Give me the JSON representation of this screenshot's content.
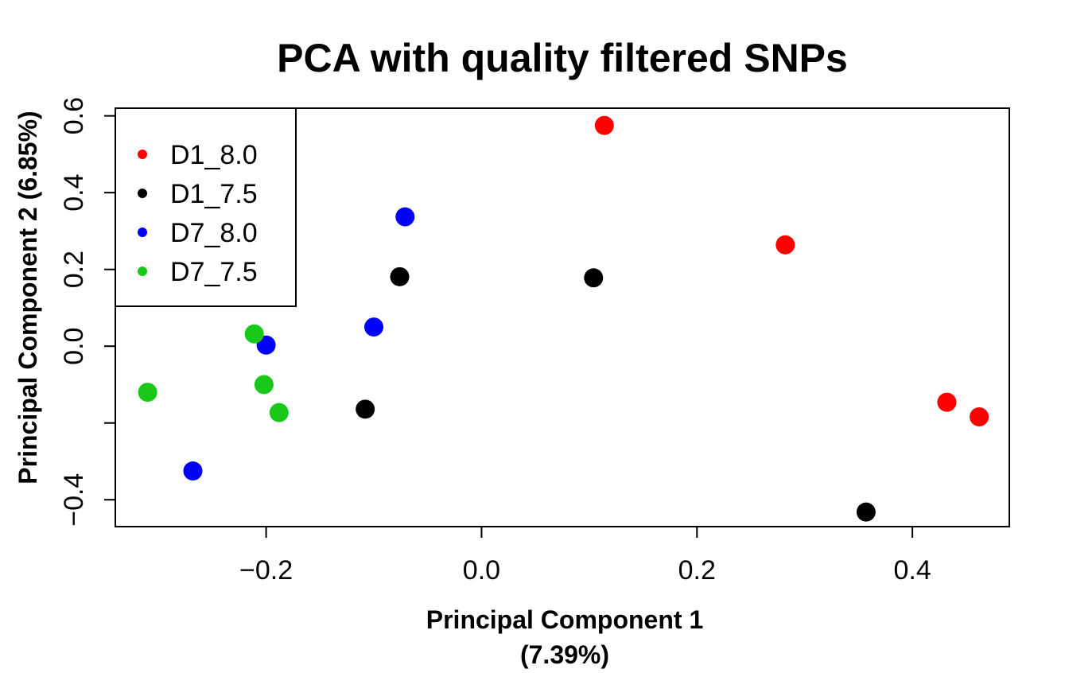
{
  "chart_data": {
    "type": "scatter",
    "title": "PCA with quality filtered SNPs",
    "xlabel": "Principal Component 1",
    "xlabel_line2": "(7.39%)",
    "ylabel": "Principal Component 2 (6.85%)",
    "xlim": [
      -0.34,
      0.49
    ],
    "ylim": [
      -0.47,
      0.62
    ],
    "xticks": [
      -0.2,
      0.0,
      0.2,
      0.4
    ],
    "xtick_labels": [
      "−0.2",
      "0.0",
      "0.2",
      "0.4"
    ],
    "yticks": [
      -0.4,
      -0.2,
      0.0,
      0.2,
      0.4,
      0.6
    ],
    "ytick_labels": [
      "−0.4",
      "",
      "0.0",
      "0.2",
      "0.4",
      "0.6"
    ],
    "grid": false,
    "legend_position": "top-left",
    "series": [
      {
        "name": "D1_8.0",
        "color": "#ff0000",
        "points": [
          [
            0.114,
            0.575
          ],
          [
            0.282,
            0.264
          ],
          [
            0.432,
            -0.146
          ],
          [
            0.462,
            -0.184
          ]
        ]
      },
      {
        "name": "D1_7.5",
        "color": "#000000",
        "points": [
          [
            -0.076,
            0.181
          ],
          [
            0.104,
            0.178
          ],
          [
            -0.108,
            -0.164
          ],
          [
            0.357,
            -0.432
          ]
        ]
      },
      {
        "name": "D7_8.0",
        "color": "#0000ff",
        "points": [
          [
            -0.071,
            0.337
          ],
          [
            -0.1,
            0.05
          ],
          [
            -0.2,
            0.003
          ],
          [
            -0.268,
            -0.325
          ]
        ]
      },
      {
        "name": "D7_7.5",
        "color": "#19c819",
        "points": [
          [
            -0.211,
            0.032
          ],
          [
            -0.202,
            -0.1
          ],
          [
            -0.188,
            -0.173
          ],
          [
            -0.31,
            -0.12
          ]
        ]
      }
    ]
  }
}
